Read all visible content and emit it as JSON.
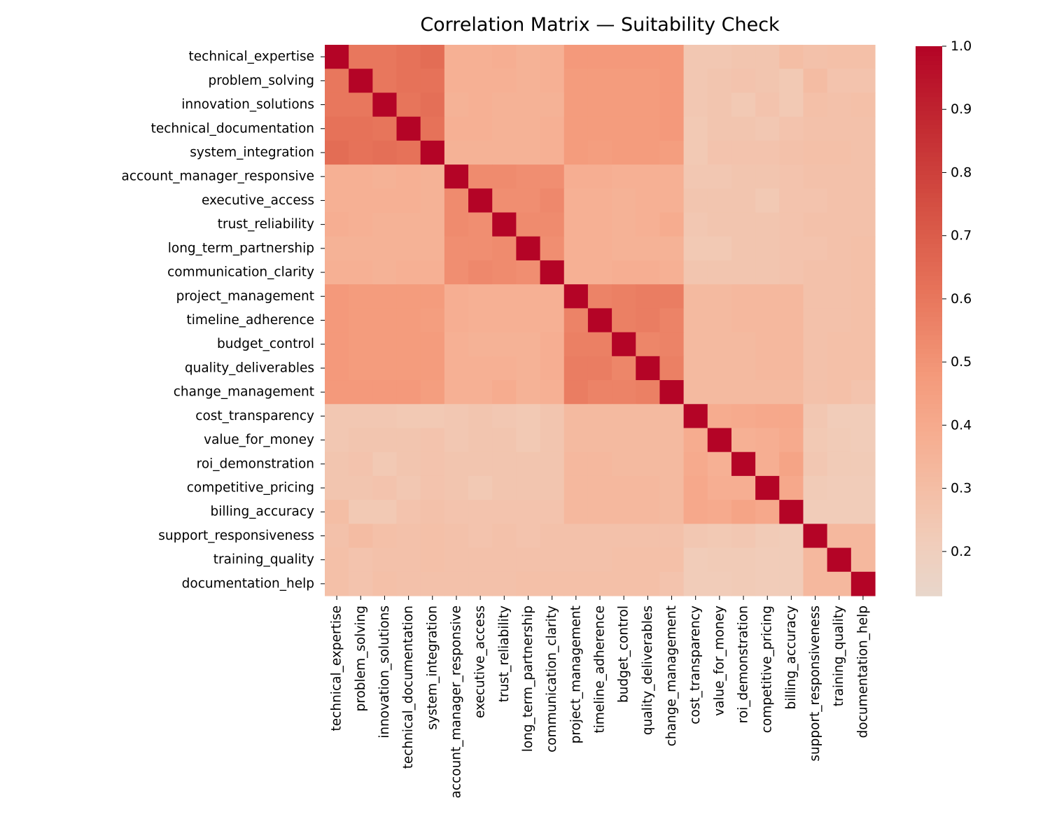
{
  "chart_data": {
    "type": "heatmap",
    "title": "Correlation Matrix — Suitability Check",
    "xlabel": "",
    "ylabel": "",
    "variables": [
      "technical_expertise",
      "problem_solving",
      "innovation_solutions",
      "technical_documentation",
      "system_integration",
      "account_manager_responsive",
      "executive_access",
      "trust_reliability",
      "long_term_partnership",
      "communication_clarity",
      "project_management",
      "timeline_adherence",
      "budget_control",
      "quality_deliverables",
      "change_management",
      "cost_transparency",
      "value_for_money",
      "roi_demonstration",
      "competitive_pricing",
      "billing_accuracy",
      "support_responsiveness",
      "training_quality",
      "documentation_help"
    ],
    "matrix": [
      [
        1.0,
        0.6,
        0.6,
        0.62,
        0.64,
        0.37,
        0.37,
        0.38,
        0.36,
        0.37,
        0.48,
        0.48,
        0.48,
        0.48,
        0.48,
        0.25,
        0.25,
        0.26,
        0.26,
        0.3,
        0.28,
        0.29,
        0.29
      ],
      [
        0.6,
        1.0,
        0.6,
        0.62,
        0.62,
        0.37,
        0.37,
        0.37,
        0.36,
        0.37,
        0.47,
        0.47,
        0.47,
        0.47,
        0.48,
        0.25,
        0.26,
        0.27,
        0.26,
        0.24,
        0.31,
        0.27,
        0.27
      ],
      [
        0.6,
        0.6,
        1.0,
        0.61,
        0.63,
        0.36,
        0.37,
        0.36,
        0.36,
        0.36,
        0.47,
        0.47,
        0.47,
        0.47,
        0.48,
        0.25,
        0.26,
        0.24,
        0.27,
        0.24,
        0.29,
        0.28,
        0.29
      ],
      [
        0.62,
        0.62,
        0.61,
        1.0,
        0.62,
        0.37,
        0.37,
        0.36,
        0.36,
        0.37,
        0.47,
        0.47,
        0.47,
        0.47,
        0.48,
        0.24,
        0.26,
        0.26,
        0.25,
        0.27,
        0.28,
        0.28,
        0.28
      ],
      [
        0.64,
        0.62,
        0.63,
        0.62,
        1.0,
        0.36,
        0.36,
        0.36,
        0.36,
        0.37,
        0.47,
        0.46,
        0.47,
        0.47,
        0.46,
        0.24,
        0.27,
        0.27,
        0.27,
        0.28,
        0.29,
        0.29,
        0.28
      ],
      [
        0.37,
        0.37,
        0.36,
        0.37,
        0.36,
        1.0,
        0.53,
        0.53,
        0.52,
        0.52,
        0.38,
        0.38,
        0.37,
        0.37,
        0.37,
        0.25,
        0.25,
        0.26,
        0.26,
        0.27,
        0.28,
        0.28,
        0.28
      ],
      [
        0.37,
        0.37,
        0.37,
        0.37,
        0.36,
        0.53,
        1.0,
        0.52,
        0.52,
        0.54,
        0.37,
        0.37,
        0.36,
        0.37,
        0.37,
        0.26,
        0.26,
        0.26,
        0.24,
        0.27,
        0.27,
        0.28,
        0.28
      ],
      [
        0.38,
        0.37,
        0.36,
        0.36,
        0.36,
        0.53,
        0.52,
        1.0,
        0.53,
        0.53,
        0.37,
        0.37,
        0.36,
        0.37,
        0.39,
        0.25,
        0.26,
        0.26,
        0.26,
        0.27,
        0.28,
        0.28,
        0.28
      ],
      [
        0.36,
        0.36,
        0.36,
        0.36,
        0.36,
        0.52,
        0.52,
        0.53,
        1.0,
        0.52,
        0.37,
        0.37,
        0.36,
        0.36,
        0.36,
        0.24,
        0.24,
        0.26,
        0.26,
        0.27,
        0.27,
        0.28,
        0.29
      ],
      [
        0.37,
        0.37,
        0.36,
        0.37,
        0.37,
        0.52,
        0.54,
        0.53,
        0.52,
        1.0,
        0.37,
        0.37,
        0.38,
        0.38,
        0.37,
        0.26,
        0.26,
        0.26,
        0.26,
        0.27,
        0.28,
        0.28,
        0.29
      ],
      [
        0.48,
        0.47,
        0.47,
        0.47,
        0.47,
        0.38,
        0.37,
        0.37,
        0.37,
        0.37,
        1.0,
        0.56,
        0.57,
        0.58,
        0.58,
        0.32,
        0.32,
        0.33,
        0.33,
        0.33,
        0.28,
        0.28,
        0.29
      ],
      [
        0.48,
        0.47,
        0.47,
        0.47,
        0.46,
        0.38,
        0.37,
        0.37,
        0.37,
        0.37,
        0.56,
        1.0,
        0.57,
        0.58,
        0.56,
        0.32,
        0.32,
        0.33,
        0.33,
        0.33,
        0.28,
        0.28,
        0.29
      ],
      [
        0.48,
        0.47,
        0.47,
        0.47,
        0.47,
        0.37,
        0.36,
        0.36,
        0.36,
        0.38,
        0.57,
        0.57,
        1.0,
        0.55,
        0.56,
        0.32,
        0.32,
        0.32,
        0.33,
        0.33,
        0.28,
        0.29,
        0.29
      ],
      [
        0.48,
        0.47,
        0.47,
        0.47,
        0.47,
        0.37,
        0.37,
        0.37,
        0.36,
        0.38,
        0.58,
        0.58,
        0.55,
        1.0,
        0.57,
        0.32,
        0.32,
        0.32,
        0.33,
        0.33,
        0.28,
        0.29,
        0.29
      ],
      [
        0.48,
        0.48,
        0.48,
        0.48,
        0.46,
        0.37,
        0.37,
        0.39,
        0.36,
        0.37,
        0.58,
        0.56,
        0.56,
        0.57,
        1.0,
        0.32,
        0.32,
        0.32,
        0.32,
        0.32,
        0.28,
        0.29,
        0.27
      ],
      [
        0.25,
        0.25,
        0.25,
        0.24,
        0.24,
        0.25,
        0.26,
        0.25,
        0.24,
        0.26,
        0.32,
        0.32,
        0.32,
        0.32,
        0.32,
        1.0,
        0.39,
        0.4,
        0.41,
        0.41,
        0.25,
        0.22,
        0.22
      ],
      [
        0.25,
        0.26,
        0.26,
        0.26,
        0.27,
        0.25,
        0.26,
        0.26,
        0.24,
        0.26,
        0.32,
        0.32,
        0.32,
        0.32,
        0.32,
        0.39,
        1.0,
        0.37,
        0.38,
        0.4,
        0.24,
        0.23,
        0.22
      ],
      [
        0.26,
        0.27,
        0.24,
        0.26,
        0.27,
        0.26,
        0.26,
        0.26,
        0.26,
        0.26,
        0.33,
        0.33,
        0.32,
        0.32,
        0.32,
        0.4,
        0.37,
        1.0,
        0.38,
        0.43,
        0.25,
        0.23,
        0.23
      ],
      [
        0.26,
        0.26,
        0.27,
        0.25,
        0.27,
        0.26,
        0.24,
        0.26,
        0.26,
        0.26,
        0.33,
        0.33,
        0.33,
        0.33,
        0.32,
        0.41,
        0.38,
        0.38,
        1.0,
        0.41,
        0.23,
        0.22,
        0.22
      ],
      [
        0.3,
        0.24,
        0.24,
        0.27,
        0.28,
        0.27,
        0.27,
        0.27,
        0.27,
        0.27,
        0.33,
        0.33,
        0.33,
        0.33,
        0.32,
        0.41,
        0.4,
        0.43,
        0.41,
        1.0,
        0.22,
        0.22,
        0.22
      ],
      [
        0.28,
        0.31,
        0.29,
        0.28,
        0.29,
        0.28,
        0.27,
        0.28,
        0.27,
        0.28,
        0.28,
        0.28,
        0.28,
        0.28,
        0.28,
        0.25,
        0.24,
        0.25,
        0.23,
        0.22,
        1.0,
        0.33,
        0.33
      ],
      [
        0.29,
        0.27,
        0.28,
        0.28,
        0.29,
        0.28,
        0.28,
        0.28,
        0.28,
        0.28,
        0.28,
        0.28,
        0.29,
        0.29,
        0.29,
        0.22,
        0.23,
        0.23,
        0.22,
        0.22,
        0.33,
        1.0,
        0.33
      ],
      [
        0.29,
        0.27,
        0.29,
        0.28,
        0.28,
        0.28,
        0.28,
        0.28,
        0.29,
        0.29,
        0.29,
        0.29,
        0.29,
        0.29,
        0.27,
        0.22,
        0.22,
        0.23,
        0.22,
        0.22,
        0.33,
        0.33,
        1.0
      ]
    ],
    "colorbar": {
      "colormap": "coolwarm",
      "range": [
        0.13,
        1.0
      ],
      "ticks": [
        0.2,
        0.3,
        0.4,
        0.5,
        0.6,
        0.7,
        0.8,
        0.9,
        1.0
      ],
      "tick_labels": [
        "0.2",
        "0.3",
        "0.4",
        "0.5",
        "0.6",
        "0.7",
        "0.8",
        "0.9",
        "1.0"
      ]
    },
    "grid": false,
    "legend": "colorbar-right"
  }
}
